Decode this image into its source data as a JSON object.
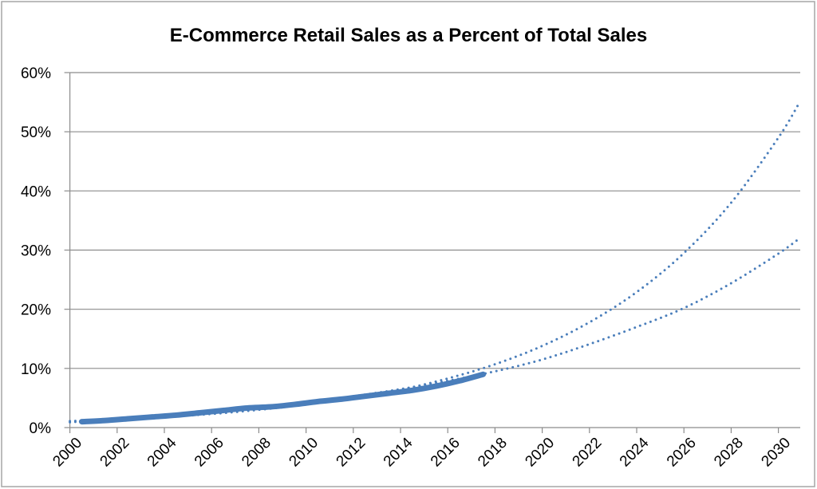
{
  "chart_data": {
    "type": "line",
    "title": "E-Commerce Retail Sales as a Percent of Total Sales",
    "xlabel": "",
    "ylabel": "",
    "ylim": [
      0,
      60
    ],
    "y_ticks": [
      "0%",
      "10%",
      "20%",
      "30%",
      "40%",
      "50%",
      "60%"
    ],
    "x_ticks": [
      "2000",
      "2002",
      "2004",
      "2006",
      "2008",
      "2010",
      "2012",
      "2014",
      "2016",
      "2018",
      "2020",
      "2022",
      "2024",
      "2026",
      "2028",
      "2030"
    ],
    "grid": "horizontal",
    "legend": "none",
    "series": [
      {
        "style": "solid-thick",
        "color": "#4a7ebb",
        "x": [
          2000,
          2001,
          2002,
          2003,
          2004,
          2005,
          2006,
          2007,
          2008,
          2009,
          2010,
          2011,
          2012,
          2013,
          2014,
          2015,
          2016,
          2017
        ],
        "values": [
          1.0,
          1.2,
          1.5,
          1.8,
          2.1,
          2.5,
          2.9,
          3.3,
          3.5,
          3.9,
          4.4,
          4.8,
          5.3,
          5.8,
          6.3,
          7.0,
          7.9,
          9.0
        ]
      },
      {
        "style": "dotted-trendline",
        "color": "#4a7ebb",
        "x": [
          2000,
          2002,
          2004,
          2006,
          2008,
          2010,
          2012,
          2014,
          2016,
          2018,
          2020,
          2022,
          2024,
          2026,
          2028,
          2030,
          2030.9
        ],
        "values": [
          1.1,
          1.4,
          1.8,
          2.3,
          3.0,
          3.9,
          5.0,
          6.4,
          8.3,
          10.7,
          13.8,
          17.8,
          22.9,
          29.5,
          38.0,
          49.0,
          55.0
        ]
      },
      {
        "style": "dotted-trendline",
        "color": "#4a7ebb",
        "x": [
          2000,
          2002,
          2004,
          2006,
          2008,
          2010,
          2012,
          2014,
          2016,
          2018,
          2020,
          2022,
          2024,
          2026,
          2028,
          2030,
          2030.9
        ],
        "values": [
          0.9,
          1.4,
          2.0,
          2.7,
          3.4,
          4.3,
          5.3,
          6.5,
          7.9,
          9.5,
          11.5,
          14.1,
          17.0,
          20.2,
          24.4,
          29.4,
          32.0
        ]
      }
    ]
  }
}
